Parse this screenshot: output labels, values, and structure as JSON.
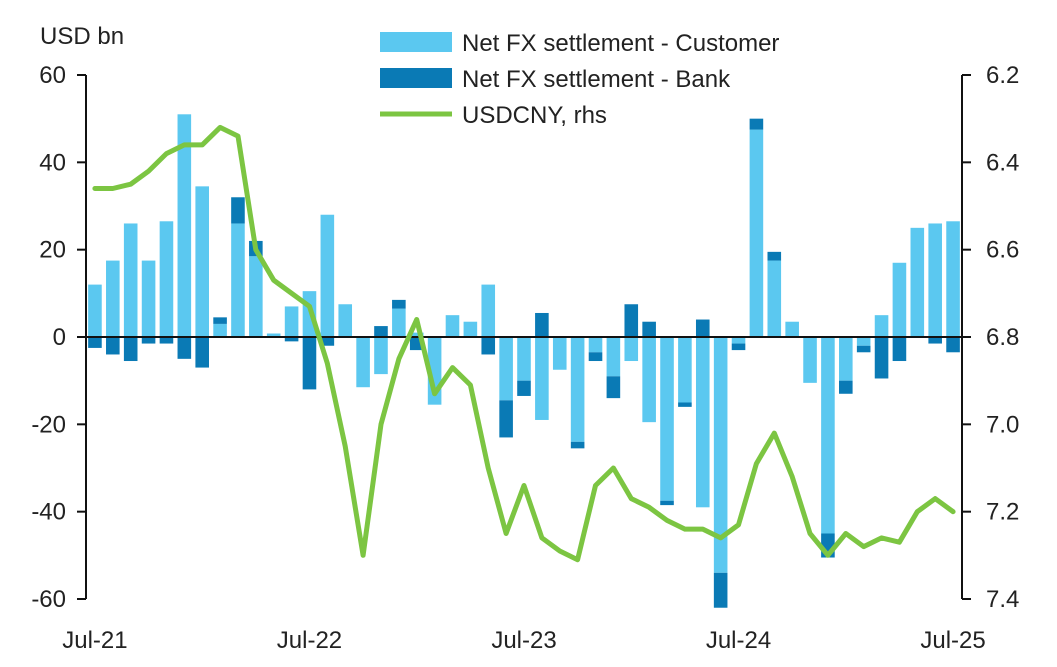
{
  "chart_data": {
    "type": "bar",
    "ylabel_left": "USD bn",
    "ylim_left": [
      -60,
      60
    ],
    "yticks_left": [
      60,
      40,
      20,
      0,
      -20,
      -40,
      -60
    ],
    "ylim_right": [
      6.2,
      7.4
    ],
    "yticks_right": [
      6.2,
      6.4,
      6.6,
      6.8,
      7.0,
      7.2,
      7.4
    ],
    "right_axis_inverted": true,
    "x_tick_labels": [
      "Jul-21",
      "Jul-22",
      "Jul-23",
      "Jul-24",
      "Jul-25"
    ],
    "grid": false,
    "legend_position": "top-center",
    "months": [
      "Jul-21",
      "Aug-21",
      "Sep-21",
      "Oct-21",
      "Nov-21",
      "Dec-21",
      "Jan-22",
      "Feb-22",
      "Mar-22",
      "Apr-22",
      "May-22",
      "Jun-22",
      "Jul-22",
      "Aug-22",
      "Sep-22",
      "Oct-22",
      "Nov-22",
      "Dec-22",
      "Jan-23",
      "Feb-23",
      "Mar-23",
      "Apr-23",
      "May-23",
      "Jun-23",
      "Jul-23",
      "Aug-23",
      "Sep-23",
      "Oct-23",
      "Nov-23",
      "Dec-23",
      "Jan-24",
      "Feb-24",
      "Mar-24",
      "Apr-24",
      "May-24",
      "Jun-24",
      "Jul-24",
      "Aug-24",
      "Sep-24",
      "Oct-24",
      "Nov-24",
      "Dec-24",
      "Jan-25",
      "Feb-25",
      "Mar-25",
      "Apr-25",
      "May-25",
      "Jun-25",
      "Jul-25"
    ],
    "series": [
      {
        "name": "Net FX settlement - Customer",
        "kind": "bar",
        "color": "#5bc8f0",
        "values": [
          12,
          17.5,
          26,
          17.5,
          26.5,
          51,
          34.5,
          3,
          26,
          18.5,
          0.8,
          7,
          10.5,
          28,
          7.5,
          -11.5,
          -8.5,
          6.5,
          1,
          -15.5,
          5,
          3.5,
          12,
          -14.5,
          -10,
          -19,
          -7.5,
          -24,
          -3.5,
          -9,
          -5.5,
          -19.5,
          -37.5,
          -15,
          -39,
          -54,
          -1.5,
          47.5,
          17.5,
          3.5,
          -10.5,
          -45,
          -10,
          -2,
          5,
          17,
          25,
          26,
          26.5
        ]
      },
      {
        "name": "Net FX settlement - Bank",
        "kind": "bar",
        "color": "#0a7ab5",
        "values": [
          -2.5,
          -4,
          -5.5,
          -1.5,
          -1.5,
          -5,
          -7,
          1.5,
          6,
          3.5,
          0,
          -1,
          -12,
          -2,
          0,
          0,
          2.5,
          2,
          -3,
          0,
          0,
          0,
          -4,
          -8.5,
          -3.5,
          5.5,
          0,
          -1.5,
          -2,
          -5,
          7.5,
          3.5,
          -1,
          -1,
          4,
          -8,
          -1.5,
          2.5,
          2,
          0,
          0,
          -5.5,
          -3,
          -1.5,
          -9.5,
          -5.5,
          0,
          -1.5,
          -3.5
        ]
      },
      {
        "name": "USDCNY, rhs",
        "kind": "line",
        "axis": "right",
        "color": "#7cc542",
        "values": [
          6.46,
          6.46,
          6.45,
          6.42,
          6.38,
          6.36,
          6.36,
          6.32,
          6.34,
          6.6,
          6.67,
          6.7,
          6.73,
          6.86,
          7.05,
          7.3,
          7.0,
          6.85,
          6.76,
          6.93,
          6.87,
          6.91,
          7.1,
          7.25,
          7.14,
          7.26,
          7.29,
          7.31,
          7.14,
          7.1,
          7.17,
          7.19,
          7.22,
          7.24,
          7.24,
          7.26,
          7.23,
          7.09,
          7.02,
          7.12,
          7.25,
          7.3,
          7.25,
          7.28,
          7.26,
          7.27,
          7.2,
          7.17,
          7.2
        ]
      }
    ]
  }
}
